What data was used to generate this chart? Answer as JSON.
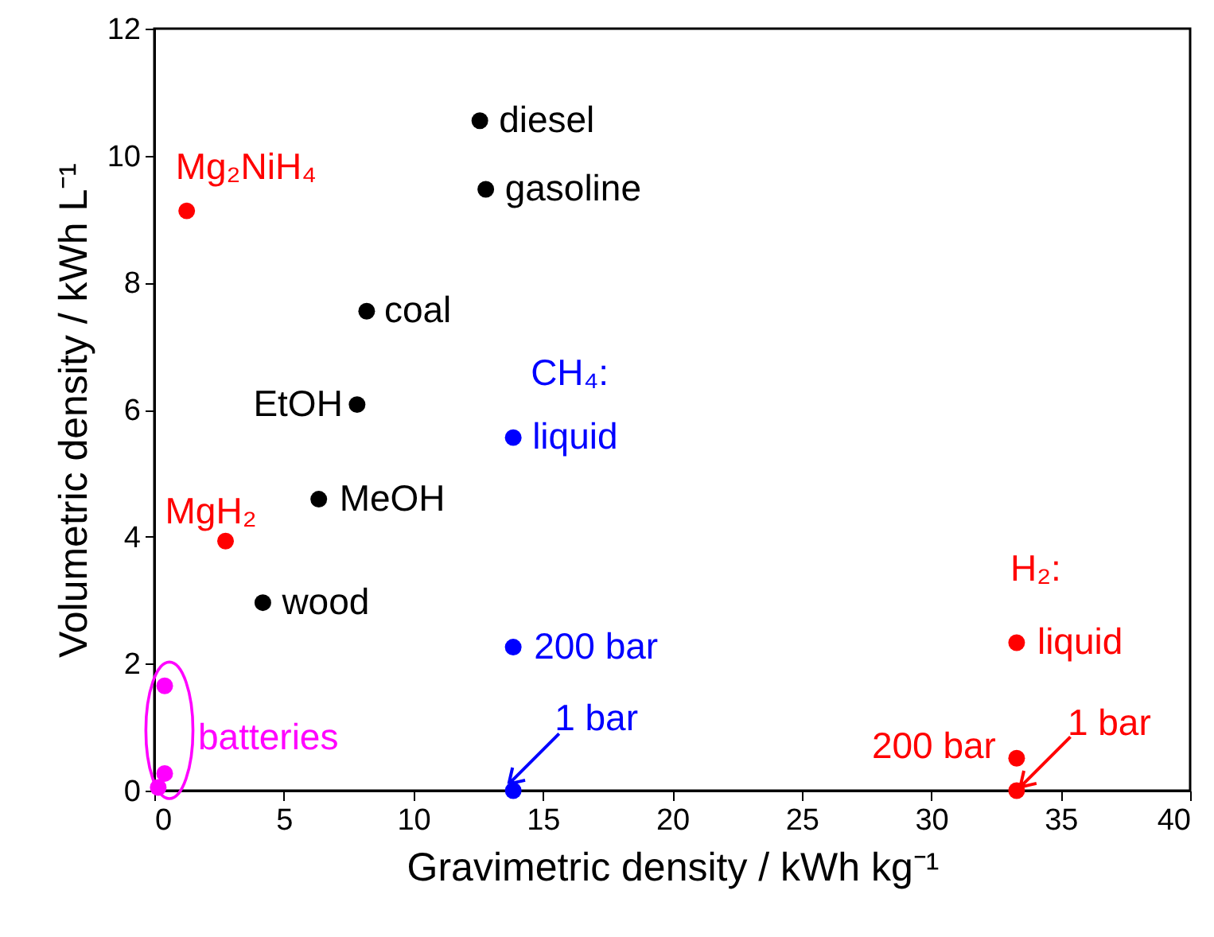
{
  "chart_data": {
    "type": "scatter",
    "xlabel": "Gravimetric density / kWh kg⁻¹",
    "ylabel": "Volumetric density / kWh L⁻¹",
    "xlim": [
      0,
      40
    ],
    "xticks": [
      0,
      5,
      10,
      15,
      20,
      25,
      30,
      35,
      40
    ],
    "ylim": [
      0,
      12
    ],
    "yticks": [
      0,
      2,
      4,
      6,
      8,
      10,
      12
    ],
    "grid": false,
    "marker": "circle",
    "series": [
      {
        "color": "#000000",
        "x": [
          12.57,
          12.8,
          8.2,
          7.83,
          6.35,
          4.19
        ],
        "values": [
          10.55,
          9.47,
          7.55,
          6.08,
          4.59,
          2.96
        ]
      },
      {
        "color": "#ff0000",
        "x": [
          1.25,
          2.75,
          33.3,
          33.3,
          33.3
        ],
        "values": [
          9.13,
          3.93,
          2.33,
          0.51,
          0
        ]
      },
      {
        "color": "#0000ff",
        "x": [
          13.86,
          13.86,
          13.86
        ],
        "values": [
          5.56,
          2.26,
          0
        ]
      },
      {
        "color": "#ff00ff",
        "x": [
          0.4,
          0.4,
          0.15
        ],
        "values": [
          1.65,
          0.27,
          0.05
        ]
      }
    ],
    "annotations": [
      "diesel",
      "gasoline",
      "coal",
      "EtOH",
      "MeOH",
      "wood",
      "Mg₂NiH₄",
      "MgH₂",
      "CH₄:",
      "liquid",
      "200 bar",
      {
        "text": "1 bar",
        "x": 13.86,
        "y": 0
      },
      "H₂:",
      "liquid",
      "200 bar",
      {
        "text": "1 bar",
        "x": 33.3,
        "y": 0
      },
      "batteries"
    ]
  }
}
